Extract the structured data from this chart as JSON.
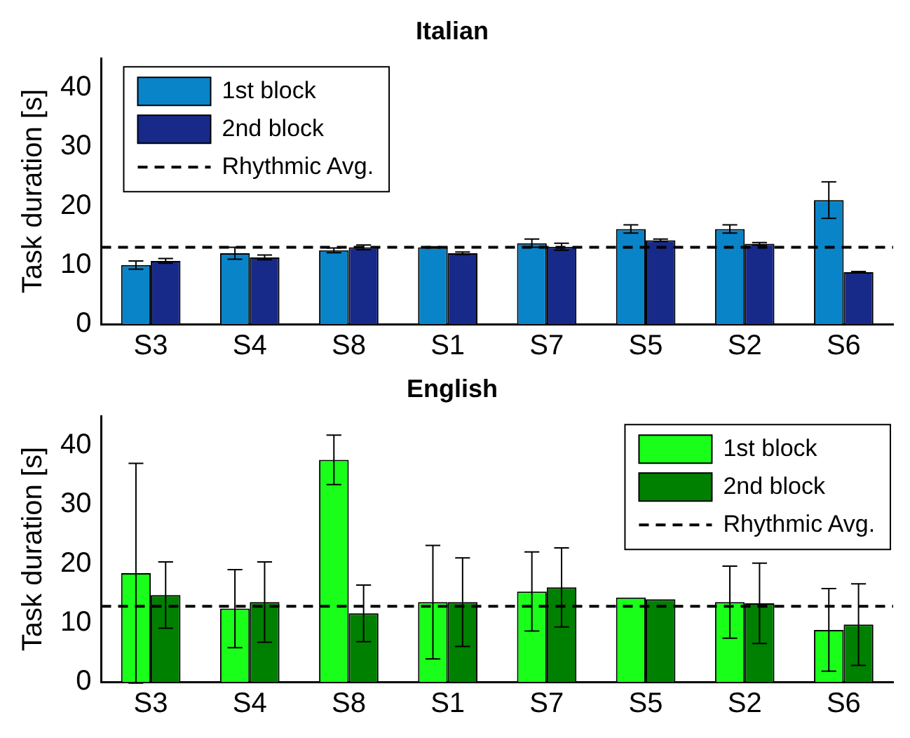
{
  "chart_data": [
    {
      "type": "bar",
      "title": "Italian",
      "ylabel": "Task duration [s]",
      "categories": [
        "S3",
        "S4",
        "S8",
        "S1",
        "S7",
        "S5",
        "S2",
        "S6"
      ],
      "series": [
        {
          "name": "1st block",
          "color": "#0a84c8",
          "values": [
            10.0,
            12.0,
            12.5,
            13.0,
            13.7,
            16.1,
            16.1,
            21.0
          ],
          "errors": [
            0.7,
            1.0,
            0.4,
            0.1,
            0.7,
            0.7,
            0.7,
            3.1
          ]
        },
        {
          "name": "2nd block",
          "color": "#172a8a",
          "values": [
            10.7,
            11.3,
            13.0,
            12.0,
            13.1,
            14.2,
            13.6,
            8.8
          ],
          "errors": [
            0.4,
            0.4,
            0.4,
            0.2,
            0.6,
            0.2,
            0.2,
            0.1
          ]
        }
      ],
      "ref_lines": [
        {
          "axis": "y",
          "value": 13.0,
          "label": "Rhythmic Avg.",
          "color": "#000000",
          "line_style": "dashed"
        }
      ],
      "ylim": [
        0,
        45
      ],
      "yticks": [
        0,
        10,
        20,
        30,
        40
      ],
      "grid": false,
      "legend": "top left"
    },
    {
      "type": "bar",
      "title": "English",
      "ylabel": "Task duration [s]",
      "categories": [
        "S3",
        "S4",
        "S8",
        "S1",
        "S7",
        "S5",
        "S2",
        "S6"
      ],
      "series": [
        {
          "name": "1st block",
          "color": "#1aff1a",
          "values": [
            18.4,
            12.4,
            37.6,
            13.5,
            15.3,
            14.3,
            13.5,
            8.8
          ],
          "errors": [
            18.6,
            6.6,
            4.2,
            9.6,
            6.7,
            null,
            6.1,
            7.0
          ]
        },
        {
          "name": "2nd block",
          "color": "#008000",
          "values": [
            14.7,
            13.5,
            11.6,
            13.5,
            16.0,
            14.0,
            13.3,
            9.7
          ],
          "errors": [
            5.6,
            6.8,
            4.8,
            7.5,
            6.7,
            null,
            6.8,
            6.9
          ]
        }
      ],
      "ref_lines": [
        {
          "axis": "y",
          "value": 12.8,
          "label": "Rhythmic Avg.",
          "color": "#000000",
          "line_style": "dashed"
        }
      ],
      "ylim": [
        0,
        45
      ],
      "yticks": [
        0,
        10,
        20,
        30,
        40
      ],
      "grid": false,
      "legend": "top right"
    }
  ]
}
